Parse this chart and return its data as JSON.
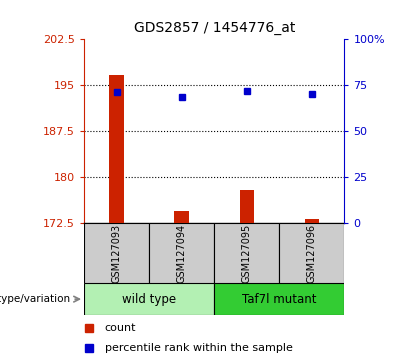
{
  "title": "GDS2857 / 1454776_at",
  "samples": [
    "GSM127093",
    "GSM127094",
    "GSM127095",
    "GSM127096"
  ],
  "bar_values": [
    196.6,
    174.5,
    177.8,
    173.2
  ],
  "bar_baseline": 172.5,
  "percentile_values": [
    71.0,
    68.5,
    71.5,
    70.0
  ],
  "left_ylim": [
    172.5,
    202.5
  ],
  "left_yticks": [
    172.5,
    180.0,
    187.5,
    195.0,
    202.5
  ],
  "left_yticklabels": [
    "172.5",
    "180",
    "187.5",
    "195",
    "202.5"
  ],
  "right_ylim": [
    0,
    100
  ],
  "right_yticks": [
    0,
    25,
    50,
    75,
    100
  ],
  "right_yticklabels": [
    "0",
    "25",
    "50",
    "75",
    "100%"
  ],
  "bar_color": "#cc2200",
  "point_color": "#0000cc",
  "group1_label": "wild type",
  "group2_label": "Taf7l mutant",
  "group1_bg": "#b3f0b3",
  "group2_bg": "#33cc33",
  "sample_box_bg": "#cccccc",
  "genotype_label": "genotype/variation",
  "legend_count": "count",
  "legend_percentile": "percentile rank within the sample",
  "plot_bg": "#ffffff",
  "left_tick_color": "#cc2200",
  "right_tick_color": "#0000cc"
}
